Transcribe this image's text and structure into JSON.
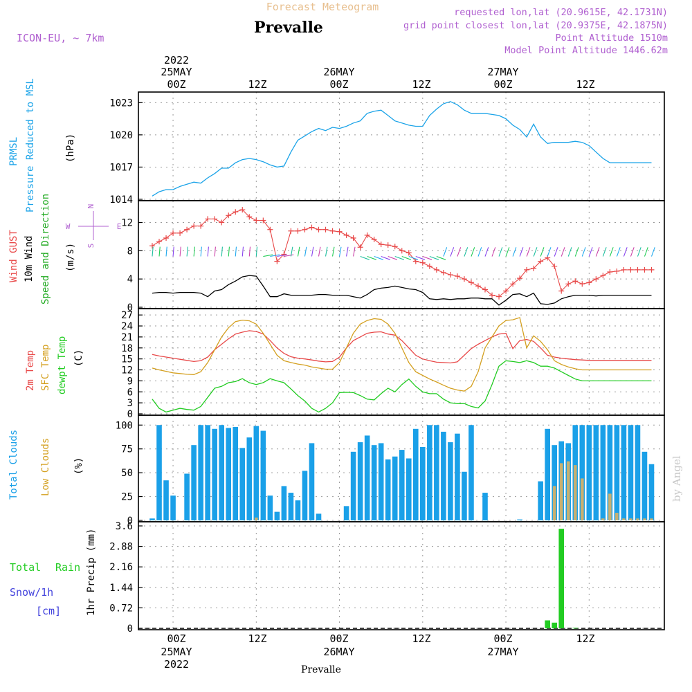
{
  "header": {
    "top_title": "Forecast Meteogram",
    "location": "Prevalle",
    "model": "ICON-EU, ~ 7km",
    "requested": "requested lon,lat (20.9615E, 42.1731N)",
    "gridpoint": "grid point closest lon,lat (20.9375E, 42.1875N)",
    "altitude": "Point Altitude 1510m",
    "model_altitude": "Model Point Altitude 1446.62m",
    "credit": "by Angel"
  },
  "time_axis": {
    "ticks": [
      "00Z",
      "12Z",
      "00Z",
      "12Z",
      "00Z",
      "12Z"
    ],
    "top_dates": [
      "2022",
      "25MAY",
      "26MAY",
      "27MAY"
    ],
    "bottom_dates": [
      "25MAY",
      "2022",
      "26MAY",
      "27MAY"
    ],
    "bottom_label": "Prevalle"
  },
  "panels": {
    "pressure": {
      "label1": "PRMSL",
      "label2": "Pressure Reduced to MSL",
      "unit": "(hPa)",
      "ticks": [
        "1014",
        "1017",
        "1020",
        "1023"
      ]
    },
    "wind": {
      "label_gust": "Wind GUST",
      "label_wind": "10m Wind",
      "label_dir": "Speed and Direction",
      "unit": "(m/s)",
      "ticks": [
        "0",
        "4",
        "8",
        "12"
      ],
      "compass": {
        "w": "W",
        "e": "E",
        "n": "N",
        "s": "S"
      }
    },
    "temp": {
      "label1": "2m Temp",
      "label2": "SFC Temp",
      "label3": "dewpt Temp",
      "unit": "(C)",
      "ticks": [
        "0",
        "3",
        "6",
        "9",
        "12",
        "15",
        "18",
        "21",
        "24",
        "27"
      ]
    },
    "clouds": {
      "label1": "Total Clouds",
      "label2": "Low Clouds",
      "unit": "(%)",
      "ticks": [
        "0",
        "25",
        "50",
        "75",
        "100"
      ]
    },
    "precip": {
      "label1": "Total",
      "label1b": "Rain",
      "label2": "Snow/1h",
      "label3": "[cm]",
      "unit": "1hr Precip (mm)",
      "ticks": [
        "0",
        "0.72",
        "1.44",
        "2.16",
        "2.88",
        "3.6"
      ]
    }
  },
  "colors": {
    "pressure": "#1aa3e8",
    "gust": "#e84848",
    "wind": "#000000",
    "windlabel": "#22aa22",
    "temp2m": "#e84848",
    "sfc": "#d4a020",
    "dew": "#22cc22",
    "total_cloud": "#1aa0e8",
    "low_cloud": "#c8b070",
    "rain": "#22cc22",
    "header": "#b060d0",
    "snow": "#4444dd"
  },
  "chart_data": {
    "type": "line",
    "x_unit": "hours since 2022-05-24 21Z",
    "x_range": [
      0,
      72
    ],
    "pressure": {
      "ylim": [
        1014,
        1023.6
      ],
      "x": [
        0,
        1,
        2,
        3,
        4,
        5,
        6,
        7,
        8,
        9,
        10,
        11,
        12,
        13,
        14,
        15,
        16,
        17,
        18,
        19,
        20,
        21,
        22,
        23,
        24,
        25,
        26,
        27,
        28,
        29,
        30,
        31,
        32,
        33,
        34,
        35,
        36,
        37,
        38,
        39,
        40,
        41,
        42,
        43,
        44,
        45,
        46,
        47,
        48,
        49,
        50,
        51,
        52,
        53,
        54,
        55,
        56,
        57,
        58,
        59,
        60,
        61,
        62,
        63,
        64,
        65,
        66,
        67,
        68,
        69,
        70,
        71,
        72
      ],
      "values": [
        1014.3,
        1014.7,
        1014.9,
        1014.9,
        1015.2,
        1015.4,
        1015.6,
        1015.5,
        1016.0,
        1016.4,
        1016.9,
        1016.9,
        1017.4,
        1017.7,
        1017.8,
        1017.7,
        1017.5,
        1017.2,
        1017.0,
        1017.1,
        1018.4,
        1019.5,
        1019.9,
        1020.3,
        1020.6,
        1020.4,
        1020.7,
        1020.6,
        1020.8,
        1021.1,
        1021.3,
        1022.0,
        1022.2,
        1022.3,
        1021.8,
        1021.3,
        1021.1,
        1020.9,
        1020.8,
        1020.8,
        1021.8,
        1022.4,
        1022.9,
        1023.1,
        1022.8,
        1022.3,
        1022.0,
        1022.0,
        1022.0,
        1021.9,
        1021.8,
        1021.5,
        1020.9,
        1020.5,
        1019.8,
        1021.0,
        1019.8,
        1019.2,
        1019.3,
        1019.3,
        1019.3,
        1019.4,
        1019.3,
        1019.0,
        1018.4,
        1017.8,
        1017.4,
        1017.4,
        1017.4,
        1017.4,
        1017.4,
        1017.4,
        1017.4
      ]
    },
    "wind": {
      "ylim": [
        0,
        14.5
      ],
      "x": [
        0,
        1,
        2,
        3,
        4,
        5,
        6,
        7,
        8,
        9,
        10,
        11,
        12,
        13,
        14,
        15,
        16,
        17,
        18,
        19,
        20,
        21,
        22,
        23,
        24,
        25,
        26,
        27,
        28,
        29,
        30,
        31,
        32,
        33,
        34,
        35,
        36,
        37,
        38,
        39,
        40,
        41,
        42,
        43,
        44,
        45,
        46,
        47,
        48,
        49,
        50,
        51,
        52,
        53,
        54,
        55,
        56,
        57,
        58,
        59,
        60,
        61,
        62,
        63,
        64,
        65,
        66,
        67,
        68,
        69,
        70,
        71,
        72
      ],
      "values": [
        2.0,
        2.1,
        2.1,
        2.0,
        2.1,
        2.1,
        2.1,
        2.0,
        1.5,
        2.3,
        2.5,
        3.2,
        3.7,
        4.3,
        4.5,
        4.4,
        3.0,
        1.5,
        1.5,
        1.9,
        1.7,
        1.7,
        1.7,
        1.7,
        1.8,
        1.8,
        1.7,
        1.7,
        1.7,
        1.5,
        1.3,
        1.8,
        2.5,
        2.7,
        2.8,
        3.0,
        2.8,
        2.6,
        2.5,
        2.1,
        1.2,
        1.1,
        1.2,
        1.1,
        1.2,
        1.2,
        1.3,
        1.3,
        1.2,
        1.2,
        0.3,
        1.0,
        1.8,
        1.9,
        1.5,
        2.0,
        0.5,
        0.4,
        0.6,
        1.2,
        1.5,
        1.7,
        1.7,
        1.7,
        1.6,
        1.7,
        1.7,
        1.7,
        1.7,
        1.7,
        1.7,
        1.7,
        1.7
      ]
    },
    "gust": {
      "x": [
        0,
        1,
        2,
        3,
        4,
        5,
        6,
        7,
        8,
        9,
        10,
        11,
        12,
        13,
        14,
        15,
        16,
        17,
        18,
        19,
        20,
        21,
        22,
        23,
        24,
        25,
        26,
        27,
        28,
        29,
        30,
        31,
        32,
        33,
        34,
        35,
        36,
        37,
        38,
        39,
        40,
        41,
        42,
        43,
        44,
        45,
        46,
        47,
        48,
        49,
        50,
        51,
        52,
        53,
        54,
        55,
        56,
        57,
        58,
        59,
        60,
        61,
        62,
        63,
        64,
        65,
        66,
        67,
        68,
        69,
        70,
        71,
        72
      ],
      "values": [
        8.7,
        9.3,
        9.8,
        10.5,
        10.5,
        11.0,
        11.5,
        11.5,
        12.5,
        12.5,
        12.0,
        13.0,
        13.5,
        13.8,
        12.8,
        12.3,
        12.3,
        11.0,
        6.5,
        7.5,
        10.8,
        10.8,
        11.0,
        11.3,
        11.0,
        11.0,
        10.8,
        10.7,
        10.2,
        9.8,
        8.5,
        10.2,
        9.6,
        8.9,
        8.8,
        8.6,
        8.0,
        7.7,
        6.5,
        6.3,
        5.8,
        5.3,
        4.9,
        4.6,
        4.4,
        4.0,
        3.5,
        3.0,
        2.5,
        1.7,
        1.5,
        2.3,
        3.3,
        4.1,
        5.3,
        5.5,
        6.5,
        7.0,
        5.8,
        2.3,
        3.3,
        3.7,
        3.3,
        3.5,
        4.0,
        4.5,
        5.0,
        5.1,
        5.3,
        5.3,
        5.3,
        5.3,
        5.3
      ]
    },
    "temperature": {
      "ylim": [
        0,
        27.6
      ],
      "x": [
        0,
        1,
        2,
        3,
        4,
        5,
        6,
        7,
        8,
        9,
        10,
        11,
        12,
        13,
        14,
        15,
        16,
        17,
        18,
        19,
        20,
        21,
        22,
        23,
        24,
        25,
        26,
        27,
        28,
        29,
        30,
        31,
        32,
        33,
        34,
        35,
        36,
        37,
        38,
        39,
        40,
        41,
        42,
        43,
        44,
        45,
        46,
        47,
        48,
        49,
        50,
        51,
        52,
        53,
        54,
        55,
        56,
        57,
        58,
        59,
        60,
        61,
        62,
        63,
        64,
        65,
        66,
        67,
        68,
        69,
        70,
        71,
        72
      ],
      "series": [
        {
          "name": "2m Temp",
          "values": [
            16.2,
            15.8,
            15.5,
            15.2,
            14.9,
            14.6,
            14.3,
            14.5,
            15.5,
            17.5,
            19.0,
            20.5,
            21.8,
            22.3,
            22.7,
            22.5,
            21.8,
            20.0,
            18.0,
            16.5,
            15.6,
            15.2,
            15.0,
            14.7,
            14.4,
            14.2,
            14.3,
            15.5,
            18.0,
            20.0,
            21.0,
            22.0,
            22.3,
            22.4,
            21.8,
            21.5,
            20.0,
            18.0,
            16.0,
            15.0,
            14.5,
            14.1,
            14.0,
            13.9,
            14.2,
            16.0,
            17.8,
            19.0,
            20.0,
            21.0,
            21.8,
            22.0,
            17.8,
            20.0,
            20.3,
            19.8,
            18.0,
            16.0,
            15.5,
            15.2,
            15.0,
            14.8,
            14.7,
            14.6,
            14.6,
            14.6,
            14.6,
            14.6,
            14.6,
            14.6,
            14.6,
            14.6,
            14.6
          ]
        },
        {
          "name": "SFC Temp",
          "values": [
            12.5,
            12.0,
            11.6,
            11.2,
            11.0,
            10.8,
            10.7,
            11.5,
            14.0,
            17.5,
            21.0,
            23.5,
            25.2,
            25.6,
            25.4,
            24.5,
            22.0,
            19.0,
            16.0,
            14.5,
            14.0,
            13.6,
            13.3,
            12.8,
            12.5,
            12.2,
            12.2,
            14.0,
            18.0,
            22.0,
            24.5,
            25.5,
            26.0,
            25.8,
            24.5,
            22.0,
            18.0,
            14.0,
            11.5,
            10.5,
            9.5,
            8.7,
            7.8,
            7.0,
            6.5,
            6.2,
            7.5,
            11.5,
            18.0,
            21.0,
            24.0,
            25.5,
            25.7,
            26.3,
            18.0,
            21.3,
            19.8,
            17.5,
            14.5,
            13.5,
            12.8,
            12.3,
            12.0,
            12.0,
            12.0,
            12.0,
            12.0,
            12.0,
            12.0,
            12.0,
            12.0,
            12.0,
            12.0
          ]
        },
        {
          "name": "dewpt Temp",
          "values": [
            4.0,
            1.5,
            0.5,
            1.0,
            1.5,
            1.2,
            1.0,
            2.0,
            4.5,
            7.0,
            7.5,
            8.5,
            8.8,
            9.6,
            8.5,
            8.0,
            8.5,
            9.6,
            9.0,
            8.5,
            6.8,
            5.0,
            3.5,
            1.5,
            0.5,
            1.5,
            3.0,
            5.8,
            5.9,
            5.8,
            5.0,
            4.0,
            3.8,
            5.5,
            7.0,
            6.0,
            8.0,
            9.5,
            7.5,
            6.0,
            5.5,
            5.5,
            4.0,
            3.0,
            2.8,
            2.8,
            2.0,
            1.6,
            3.5,
            8.0,
            13.0,
            14.5,
            14.3,
            14.0,
            14.5,
            14.0,
            13.0,
            13.0,
            12.5,
            11.5,
            10.5,
            9.5,
            9.0,
            9.0,
            9.0,
            9.0,
            9.0,
            9.0,
            9.0,
            9.0,
            9.0,
            9.0,
            9.0
          ]
        }
      ]
    },
    "clouds": {
      "ylim": [
        0,
        106
      ],
      "x": [
        0,
        1,
        2,
        3,
        4,
        5,
        6,
        7,
        8,
        9,
        10,
        11,
        12,
        13,
        14,
        15,
        16,
        17,
        18,
        19,
        20,
        21,
        22,
        23,
        24,
        25,
        26,
        27,
        28,
        29,
        30,
        31,
        32,
        33,
        34,
        35,
        36,
        37,
        38,
        39,
        40,
        41,
        42,
        43,
        44,
        45,
        46,
        47,
        48,
        49,
        50,
        51,
        52,
        53,
        54,
        55,
        56,
        57,
        58,
        59,
        60,
        61,
        62,
        63,
        64,
        65,
        66,
        67,
        68,
        69,
        70,
        71,
        72
      ],
      "series": [
        {
          "name": "Total Clouds",
          "values": [
            2,
            100,
            42,
            26,
            0,
            49,
            79,
            100,
            100,
            96,
            100,
            97,
            98,
            76,
            87,
            99,
            94,
            26,
            9,
            36,
            29,
            21,
            52,
            81,
            7,
            0,
            0,
            0,
            15,
            72,
            82,
            89,
            79,
            81,
            64,
            67,
            74,
            65,
            96,
            77,
            100,
            100,
            93,
            82,
            91,
            51,
            100,
            0,
            29,
            0,
            0,
            0,
            0,
            1,
            0,
            0,
            41,
            96,
            79,
            83,
            81,
            100,
            100,
            100,
            100,
            100,
            100,
            100,
            100,
            100,
            100,
            72,
            59
          ]
        },
        {
          "name": "Low Clouds",
          "values": [
            0,
            0,
            0,
            0,
            0,
            0,
            0,
            0,
            0,
            0,
            0,
            0,
            0,
            0,
            0,
            3,
            0,
            0,
            0,
            0,
            0,
            0,
            0,
            0,
            0,
            0,
            0,
            0,
            0,
            0,
            0,
            0,
            0,
            0,
            0,
            0,
            0,
            0,
            0,
            0,
            0,
            0,
            0,
            0,
            0,
            0,
            0,
            0,
            0,
            0,
            0,
            0,
            0,
            0,
            0,
            0,
            0,
            0,
            36,
            60,
            62,
            58,
            44,
            0,
            0,
            2,
            28,
            8,
            2,
            2,
            2,
            2,
            2
          ]
        }
      ]
    },
    "precip": {
      "type": "bar",
      "ylim": [
        0,
        3.6
      ],
      "x": [
        57,
        58,
        59,
        60,
        61,
        62
      ],
      "values": [
        0.28,
        0.2,
        3.5,
        0.0,
        0.02,
        0.0
      ],
      "series_name": "Total Rain"
    }
  }
}
